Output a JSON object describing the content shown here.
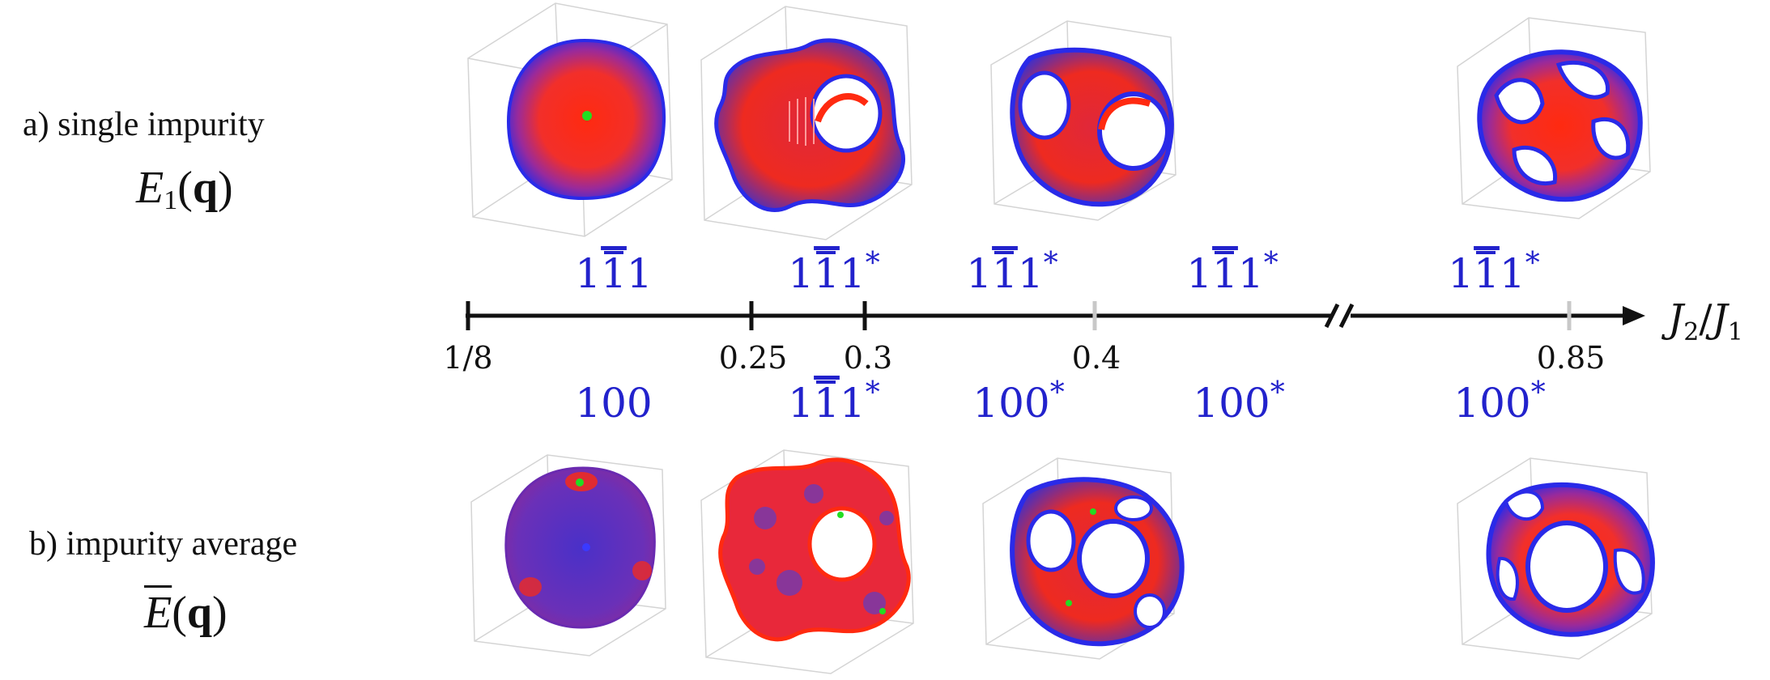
{
  "rows": {
    "a": {
      "label": "a)   single impurity",
      "symbol": "E",
      "subscript": "1",
      "arg_open": "(",
      "arg": "q",
      "arg_close": ")"
    },
    "b": {
      "label": "b)   impurity average",
      "symbol": "E",
      "arg_open": "(",
      "arg": "q",
      "arg_close": ")"
    }
  },
  "axis": {
    "label_main": "J",
    "label_sub1": "2",
    "label_slash": "/",
    "label_main2": "J",
    "label_sub2": "1",
    "ticks": [
      {
        "value": "1/8",
        "style": "major"
      },
      {
        "value": "0.25",
        "style": "major"
      },
      {
        "value": "0.3",
        "style": "major"
      },
      {
        "value": "0.4",
        "style": "minor"
      },
      {
        "value": "0.85",
        "style": "minor"
      }
    ],
    "break": true
  },
  "phases_top": [
    {
      "base": "1",
      "bar": "1",
      "end": "1",
      "star": ""
    },
    {
      "base": "1",
      "bar": "1",
      "end": "1",
      "star": "*"
    },
    {
      "base": "1",
      "bar": "1",
      "end": "1",
      "star": "*"
    },
    {
      "base": "1",
      "bar": "1",
      "end": "1",
      "star": "*"
    },
    {
      "base": "1",
      "bar": "1",
      "end": "1",
      "star": "*"
    }
  ],
  "phases_bottom": [
    {
      "text": "100",
      "star": ""
    },
    {
      "base": "1",
      "bar": "1",
      "end": "1",
      "star": "*"
    },
    {
      "text": "100",
      "star": "*"
    },
    {
      "text": "100",
      "star": "*"
    },
    {
      "text": "100",
      "star": "*"
    }
  ],
  "colors": {
    "phase_text": "#2222cc",
    "axis": "#111111",
    "minor_tick": "#c8c8c8",
    "surface_red": "#ff2a10",
    "surface_blue": "#2a2ae8",
    "surface_green": "#22dd22",
    "box_edge": "#d4d4d4"
  }
}
